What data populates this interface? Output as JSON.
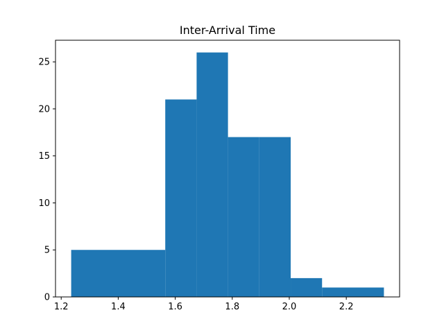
{
  "chart_data": {
    "type": "histogram",
    "title": "Inter-Arrival Time",
    "xlabel": "",
    "ylabel": "",
    "bins": [
      {
        "x0": 1.235,
        "x1": 1.565,
        "count": 5
      },
      {
        "x0": 1.565,
        "x1": 1.675,
        "count": 21
      },
      {
        "x0": 1.675,
        "x1": 1.785,
        "count": 26
      },
      {
        "x0": 1.785,
        "x1": 1.895,
        "count": 17
      },
      {
        "x0": 1.895,
        "x1": 2.005,
        "count": 17
      },
      {
        "x0": 2.005,
        "x1": 2.115,
        "count": 2
      },
      {
        "x0": 2.115,
        "x1": 2.332,
        "count": 1
      }
    ],
    "xlim": [
      1.18,
      2.387
    ],
    "ylim": [
      0,
      27.3
    ],
    "xticks": [
      1.2,
      1.4,
      1.6,
      1.8,
      2.0,
      2.2
    ],
    "xtick_labels": [
      "1.2",
      "1.4",
      "1.6",
      "1.8",
      "2.0",
      "2.2"
    ],
    "yticks": [
      0,
      5,
      10,
      15,
      20,
      25
    ],
    "ytick_labels": [
      "0",
      "5",
      "10",
      "15",
      "20",
      "25"
    ],
    "bar_color": "#1f77b4",
    "grid": false,
    "legend": "none"
  }
}
